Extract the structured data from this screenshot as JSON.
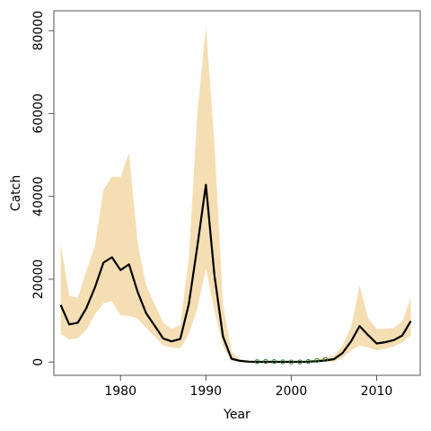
{
  "chart_data": {
    "type": "line",
    "xlabel": "Year",
    "ylabel": "Catch",
    "xlim": [
      1972.2,
      2015.1
    ],
    "ylim": [
      -3200,
      84800
    ],
    "x_ticks": [
      1980,
      1990,
      2000,
      2010
    ],
    "x_tick_labels": [
      "1980",
      "1990",
      "2000",
      "2010"
    ],
    "y_ticks": [
      0,
      20000,
      40000,
      60000,
      80000
    ],
    "y_tick_labels": [
      "0",
      "20000",
      "40000",
      "60000",
      "80000"
    ],
    "colors": {
      "band": "#f5deb3",
      "line": "#000000",
      "points": "#2e7d32"
    },
    "series": [
      {
        "kind": "median-line",
        "x": [
          1973,
          1974,
          1975,
          1976,
          1977,
          1978,
          1979,
          1980,
          1981,
          1982,
          1983,
          1984,
          1985,
          1986,
          1987,
          1988,
          1989,
          1990,
          1991,
          1992,
          1993,
          1994,
          1995,
          1996,
          1997,
          1998,
          1999,
          2000,
          2001,
          2002,
          2003,
          2004,
          2005,
          2006,
          2007,
          2008,
          2009,
          2010,
          2011,
          2012,
          2013,
          2014
        ],
        "y": [
          13800,
          9100,
          9500,
          13000,
          18000,
          24000,
          25300,
          22200,
          23600,
          17000,
          11800,
          8800,
          5700,
          5000,
          5600,
          14000,
          28000,
          42800,
          21000,
          6200,
          800,
          300,
          100,
          50,
          50,
          50,
          50,
          50,
          50,
          100,
          200,
          400,
          700,
          2200,
          5000,
          8700,
          6500,
          4500,
          4800,
          5300,
          6400,
          9900
        ]
      },
      {
        "kind": "interval-upper",
        "x": [
          1973,
          1974,
          1975,
          1976,
          1977,
          1978,
          1979,
          1980,
          1981,
          1982,
          1983,
          1984,
          1985,
          1986,
          1987,
          1988,
          1989,
          1990,
          1991,
          1992,
          1993,
          1994,
          1995,
          1996,
          1997,
          1998,
          1999,
          2000,
          2001,
          2002,
          2003,
          2004,
          2005,
          2006,
          2007,
          2008,
          2009,
          2010,
          2011,
          2012,
          2013,
          2014
        ],
        "y": [
          28500,
          16000,
          15500,
          22000,
          28000,
          41500,
          44800,
          44600,
          50500,
          29000,
          18500,
          14000,
          9500,
          8000,
          9000,
          25000,
          60000,
          81000,
          53000,
          14000,
          2500,
          700,
          400,
          300,
          300,
          300,
          250,
          250,
          250,
          400,
          600,
          1200,
          1500,
          4000,
          8500,
          18500,
          10500,
          8000,
          8000,
          8200,
          9800,
          15500
        ]
      },
      {
        "kind": "interval-lower",
        "x": [
          1973,
          1974,
          1975,
          1976,
          1977,
          1978,
          1979,
          1980,
          1981,
          1982,
          1983,
          1984,
          1985,
          1986,
          1987,
          1988,
          1989,
          1990,
          1991,
          1992,
          1993,
          1994,
          1995,
          1996,
          1997,
          1998,
          1999,
          2000,
          2001,
          2002,
          2003,
          2004,
          2005,
          2006,
          2007,
          2008,
          2009,
          2010,
          2011,
          2012,
          2013,
          2014
        ],
        "y": [
          6800,
          5400,
          5800,
          7800,
          11500,
          14200,
          14700,
          11300,
          11200,
          10500,
          8200,
          6200,
          4000,
          3500,
          3300,
          6800,
          13000,
          22500,
          12500,
          3800,
          300,
          50,
          0,
          0,
          0,
          0,
          0,
          0,
          0,
          0,
          0,
          50,
          100,
          1000,
          2800,
          4000,
          3500,
          2800,
          3200,
          3800,
          4700,
          6500
        ]
      },
      {
        "kind": "observed-points",
        "x": [
          1996,
          1997,
          1998,
          1999,
          2000,
          2001,
          2002,
          2003,
          2004
        ],
        "y": [
          100,
          150,
          120,
          50,
          30,
          40,
          150,
          400,
          600
        ]
      }
    ]
  }
}
